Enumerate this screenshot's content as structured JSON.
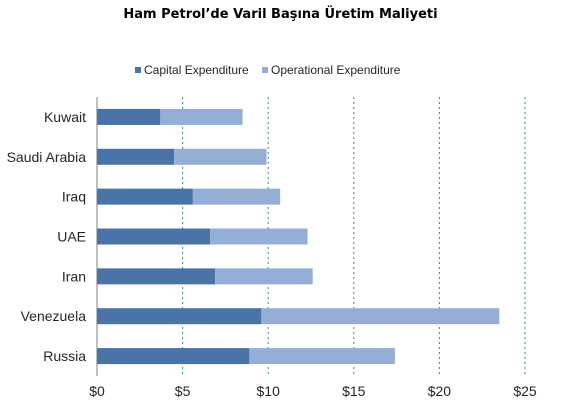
{
  "page": {
    "title": "Ham Petrol’de Varil Başına Üretim Maliyeti"
  },
  "chart_data": {
    "type": "bar",
    "orientation": "horizontal",
    "stacked": true,
    "categories": [
      "Kuwait",
      "Saudi Arabia",
      "Iraq",
      "UAE",
      "Iran",
      "Venezuela",
      "Russia"
    ],
    "series": [
      {
        "name": "Capital Expenditure",
        "color": "#4a73a8",
        "values": [
          3.7,
          4.5,
          5.6,
          6.6,
          6.9,
          9.6,
          8.9
        ]
      },
      {
        "name": "Operational Expenditure",
        "color": "#95aed6",
        "values": [
          4.8,
          5.4,
          5.1,
          5.7,
          5.7,
          13.9,
          8.5
        ]
      }
    ],
    "xlim": [
      0,
      25
    ],
    "x_ticks": [
      0,
      5,
      10,
      15,
      20,
      25
    ],
    "x_tick_labels": [
      "$0",
      "$5",
      "$10",
      "$15",
      "$20",
      "$25"
    ],
    "grid": "vertical dashed",
    "legend_position": "top"
  }
}
